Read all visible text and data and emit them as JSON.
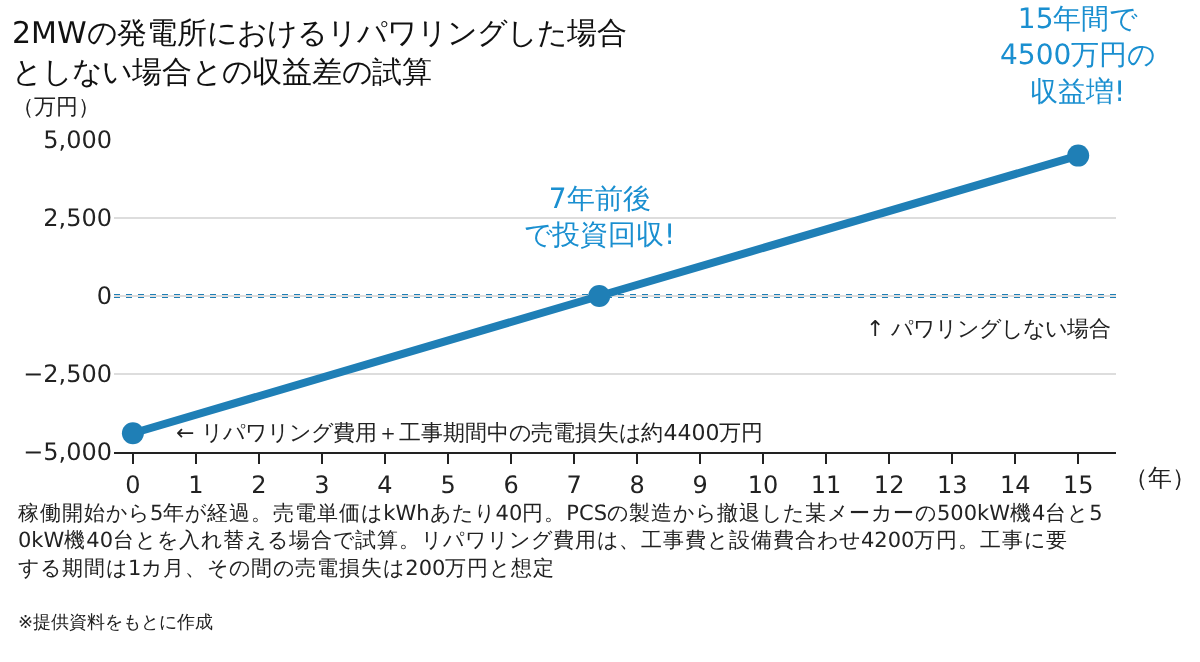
{
  "chart_data": {
    "type": "line",
    "title": "2MWの発電所におけるリパワリングした場合としない場合との収益差の試算",
    "ylabel": "（万円）",
    "xlabel": "（年）",
    "x": [
      0,
      7.4,
      15
    ],
    "series": [
      {
        "color": "#1f7fb6",
        "values": [
          -4400,
          0,
          4500
        ]
      }
    ],
    "xlim": [
      -0.3,
      15.6
    ],
    "xticks": [
      0,
      1,
      2,
      3,
      4,
      5,
      6,
      7,
      8,
      9,
      10,
      11,
      12,
      13,
      14,
      15
    ],
    "ylim": [
      -5000,
      5000
    ],
    "yticks": [
      {
        "value": 5000,
        "label": "5,000"
      },
      {
        "value": 2500,
        "label": "2,500"
      },
      0,
      {
        "value": -2500,
        "label": "−2,500"
      },
      {
        "value": -5000,
        "label": "−5,000"
      }
    ],
    "grid": "y",
    "marker": "circle",
    "line_style": "solid",
    "ref_lines": [
      {
        "axis": "y",
        "value": 0,
        "label": "↑ パワリングしない場合",
        "color": "#1f7fb6",
        "line_style": "dotted"
      }
    ],
    "annotations": [
      {
        "text": "7年前後で投資回収!",
        "x": 7.4,
        "y": 0
      },
      {
        "text": "15年間で4500万円の収益増!",
        "x": 15,
        "y": 4500
      },
      {
        "text": "← リパワリング費用＋工事期間中の売電損失は約4400万円",
        "x": 0,
        "y": -4400
      },
      "稼働開始から5年が経過。売電単価はkWhあたり40円。PCSの製造から撤退した某メーカーの500kW機4台と50kW機40台とを入れ替える場合で試算。リパワリング費用は、工事費と設備費合わせ4200万円。工事に要する期間は1カ月、その間の売電損失は200万円と想定",
      "※提供資料をもとに作成"
    ]
  }
}
